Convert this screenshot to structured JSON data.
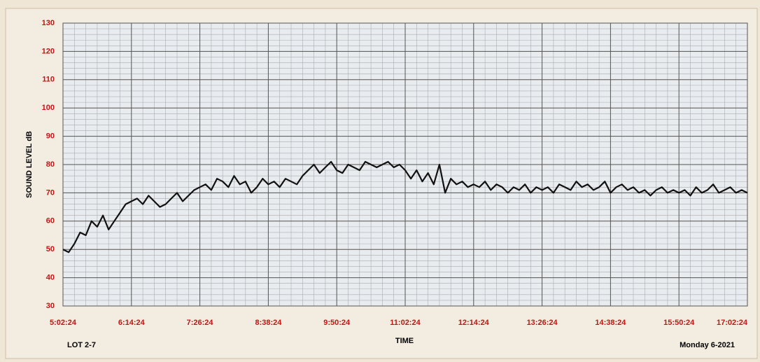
{
  "chart_data": {
    "type": "line",
    "y_label": "SOUND LEVEL dB",
    "x_label": "TIME",
    "left_note": "LOT 2-7",
    "right_note": "Monday 6-2021",
    "ylim": [
      30,
      130
    ],
    "yticks": [
      30,
      40,
      50,
      60,
      70,
      80,
      90,
      100,
      110,
      120,
      130
    ],
    "xlim": [
      "5:02:24",
      "17:02:24"
    ],
    "xticks": [
      "5:02:24",
      "6:14:24",
      "7:26:24",
      "8:38:24",
      "9:50:24",
      "11:02:24",
      "12:14:24",
      "13:26:24",
      "14:38:24",
      "15:50:24",
      "17:02:24"
    ],
    "grid": true,
    "minor_grid": true,
    "x": [
      "5:02:24",
      "5:08:24",
      "5:14:24",
      "5:20:24",
      "5:26:24",
      "5:32:24",
      "5:38:24",
      "5:44:24",
      "5:50:24",
      "5:56:24",
      "6:02:24",
      "6:08:24",
      "6:14:24",
      "6:20:24",
      "6:26:24",
      "6:32:24",
      "6:38:24",
      "6:44:24",
      "6:50:24",
      "6:56:24",
      "7:02:24",
      "7:08:24",
      "7:14:24",
      "7:20:24",
      "7:26:24",
      "7:32:24",
      "7:38:24",
      "7:44:24",
      "7:50:24",
      "7:56:24",
      "8:02:24",
      "8:08:24",
      "8:14:24",
      "8:20:24",
      "8:26:24",
      "8:32:24",
      "8:38:24",
      "8:44:24",
      "8:50:24",
      "8:56:24",
      "9:02:24",
      "9:08:24",
      "9:14:24",
      "9:20:24",
      "9:26:24",
      "9:32:24",
      "9:38:24",
      "9:44:24",
      "9:50:24",
      "9:56:24",
      "10:02:24",
      "10:08:24",
      "10:14:24",
      "10:20:24",
      "10:26:24",
      "10:32:24",
      "10:38:24",
      "10:44:24",
      "10:50:24",
      "10:56:24",
      "11:02:24",
      "11:08:24",
      "11:14:24",
      "11:20:24",
      "11:26:24",
      "11:32:24",
      "11:38:24",
      "11:44:24",
      "11:50:24",
      "11:56:24",
      "12:02:24",
      "12:08:24",
      "12:14:24",
      "12:20:24",
      "12:26:24",
      "12:32:24",
      "12:38:24",
      "12:44:24",
      "12:50:24",
      "12:56:24",
      "13:02:24",
      "13:08:24",
      "13:14:24",
      "13:20:24",
      "13:26:24",
      "13:32:24",
      "13:38:24",
      "13:44:24",
      "13:50:24",
      "13:56:24",
      "14:02:24",
      "14:08:24",
      "14:14:24",
      "14:20:24",
      "14:26:24",
      "14:32:24",
      "14:38:24",
      "14:44:24",
      "14:50:24",
      "14:56:24",
      "15:02:24",
      "15:08:24",
      "15:14:24",
      "15:20:24",
      "15:26:24",
      "15:32:24",
      "15:38:24",
      "15:44:24",
      "15:50:24",
      "15:56:24",
      "16:02:24",
      "16:08:24",
      "16:14:24",
      "16:20:24",
      "16:26:24",
      "16:32:24",
      "16:38:24",
      "16:44:24",
      "16:50:24",
      "16:56:24",
      "17:02:24"
    ],
    "series": [
      {
        "color": "#111111",
        "values": [
          50,
          49,
          52,
          56,
          55,
          60,
          58,
          62,
          57,
          60,
          63,
          66,
          67,
          68,
          66,
          69,
          67,
          65,
          66,
          68,
          70,
          67,
          69,
          71,
          72,
          73,
          71,
          75,
          74,
          72,
          76,
          73,
          74,
          70,
          72,
          75,
          73,
          74,
          72,
          75,
          74,
          73,
          76,
          78,
          80,
          77,
          79,
          81,
          78,
          77,
          80,
          79,
          78,
          81,
          80,
          79,
          80,
          81,
          79,
          80,
          78,
          75,
          78,
          74,
          77,
          73,
          80,
          70,
          75,
          73,
          74,
          72,
          73,
          72,
          74,
          71,
          73,
          72,
          70,
          72,
          71,
          73,
          70,
          72,
          71,
          72,
          70,
          73,
          72,
          71,
          74,
          72,
          73,
          71,
          72,
          74,
          70,
          72,
          73,
          71,
          72,
          70,
          71,
          69,
          71,
          72,
          70,
          71,
          70,
          71,
          69,
          72,
          70,
          71,
          73,
          70,
          71,
          72,
          70,
          71,
          70
        ]
      }
    ]
  }
}
